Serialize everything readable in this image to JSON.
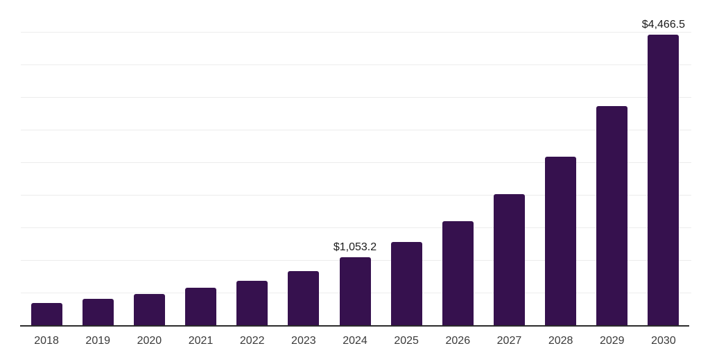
{
  "page": {
    "background_color": "#ffffff"
  },
  "chart": {
    "bar_color": "#36114e",
    "grid_color": "#ececec",
    "axis_color": "#2b2b2b",
    "tick_label_color": "#3a3a3a",
    "value_label_color": "#1a1a1a"
  },
  "chart_data": {
    "type": "bar",
    "title": "",
    "xlabel": "",
    "ylabel": "",
    "categories": [
      "2018",
      "2019",
      "2020",
      "2021",
      "2022",
      "2023",
      "2024",
      "2025",
      "2026",
      "2027",
      "2028",
      "2029",
      "2030"
    ],
    "values": [
      355,
      420,
      485,
      585,
      690,
      840,
      1053.2,
      1290,
      1610,
      2020,
      2595,
      3375,
      4466.5
    ],
    "value_labels": {
      "2024": "$1,053.2",
      "2030": "$4,466.5"
    },
    "ylim": [
      0,
      5000
    ],
    "grid_step": 500,
    "grid": true,
    "legend": false
  }
}
